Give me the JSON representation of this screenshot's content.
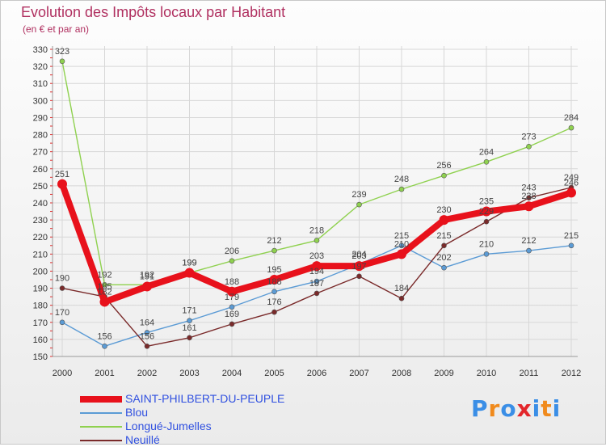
{
  "chart_data": {
    "type": "line",
    "title": "Evolution des Impôts locaux par Habitant",
    "subtitle": "(en € et par an)",
    "x": [
      "2000",
      "2001",
      "2002",
      "2003",
      "2004",
      "2005",
      "2006",
      "2007",
      "2008",
      "2009",
      "2010",
      "2011",
      "2012"
    ],
    "ylim": [
      150,
      330
    ],
    "yticks": [
      150,
      160,
      170,
      180,
      190,
      200,
      210,
      220,
      230,
      240,
      250,
      260,
      270,
      280,
      290,
      300,
      310,
      320,
      330
    ],
    "grid": true,
    "legend_position": "bottom-left",
    "series": [
      {
        "name": "SAINT-PHILBERT-DU-PEUPLE",
        "color": "#e8111b",
        "values": [
          251,
          182,
          191,
          199,
          188,
          195,
          203,
          203,
          210,
          230,
          235,
          238,
          246
        ]
      },
      {
        "name": "Blou",
        "color": "#5b9bd5",
        "values": [
          170,
          156,
          164,
          171,
          179,
          188,
          194,
          204,
          215,
          202,
          210,
          212,
          215
        ]
      },
      {
        "name": "Longué-Jumelles",
        "color": "#8fd14f",
        "values": [
          323,
          192,
          192,
          199,
          206,
          212,
          218,
          239,
          248,
          256,
          264,
          273,
          284
        ]
      },
      {
        "name": "Neuillé",
        "color": "#7a2a2a",
        "values": [
          190,
          185,
          156,
          161,
          169,
          176,
          187,
          197,
          184,
          215,
          229,
          243,
          249
        ]
      }
    ]
  },
  "logo": {
    "text": "Proxiti",
    "colors": [
      "#3a8ee6",
      "#f08a1c",
      "#3a8ee6",
      "#e3262b",
      "#3a8ee6",
      "#f08a1c",
      "#3a8ee6"
    ]
  }
}
